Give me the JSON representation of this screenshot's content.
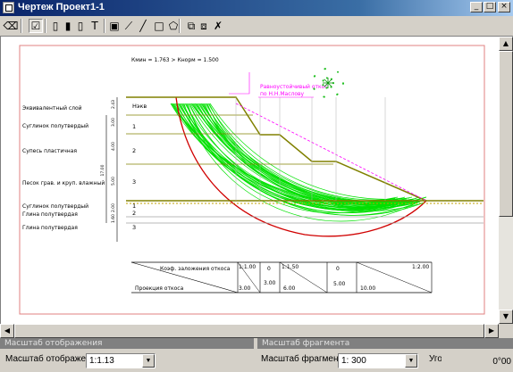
{
  "window": {
    "title": "Чертеж Проект1-1",
    "min": "_",
    "max": "□",
    "close": "×"
  },
  "toolbar": {
    "buttons": [
      {
        "name": "eraser-icon",
        "glyph": "⌫"
      },
      {
        "name": "check-icon",
        "glyph": "☑"
      },
      {
        "name": "frame-icon",
        "glyph": "▯"
      },
      {
        "name": "page-icon",
        "glyph": "▮"
      },
      {
        "name": "page-alt-icon",
        "glyph": "▯"
      },
      {
        "name": "text-icon",
        "glyph": "T"
      },
      {
        "name": "image-icon",
        "glyph": "▣"
      },
      {
        "name": "dimension-icon",
        "glyph": "⟋"
      },
      {
        "name": "line-icon",
        "glyph": "╱"
      },
      {
        "name": "rectangle-icon",
        "glyph": "□"
      },
      {
        "name": "polygon-icon",
        "glyph": "⬠"
      },
      {
        "name": "group-icon",
        "glyph": "⧉"
      },
      {
        "name": "ungroup-icon",
        "glyph": "⧈"
      },
      {
        "name": "delete-icon",
        "glyph": "✗"
      }
    ]
  },
  "drawing": {
    "formula": "Кмин = 1.763 > Кнорм = 1.500",
    "callout_line1": "Равноустойчивый откос",
    "callout_line2": "по Н.Н.Маслову",
    "layer_names": [
      "Эквивалентный слой",
      "Суглинок полутвердый",
      "Супесь пластичная",
      "Песок грав. и круп. влажный",
      "Суглинок полутвердый",
      "Глина полутвердая",
      "Глина полутвердая"
    ],
    "layer_numbers": [
      "Нэкв",
      "1",
      "2",
      "3",
      "1",
      "2",
      "3"
    ],
    "dims": [
      "2.43",
      "3.00",
      "4.00",
      "5.00",
      "2.00",
      "1.60",
      "17.00"
    ],
    "table": {
      "row1_label": "Коэф. заложения откоса",
      "row2_label": "Проекция откоса",
      "coefs": [
        "1:1.00",
        "0",
        "1:1.50",
        "0",
        "1:2.00"
      ],
      "projections": [
        "3.00",
        "3.00",
        "6.00",
        "5.00",
        "10.00"
      ]
    }
  },
  "bottom": {
    "display_scale_header": "Масштаб отображения",
    "display_scale_label": "Масштаб отображения:",
    "display_scale_value": "1:1.13",
    "fragment_scale_header": "Масштаб фрагмента",
    "fragment_scale_label": "Масштаб фрагмента:",
    "fragment_scale_value": "1: 300",
    "rotation_label": "Угол поворота:",
    "rotation_value": "0°00"
  },
  "colors": {
    "slope": "#808000",
    "arc": "#00e000",
    "critical": "#d00000",
    "frame": "#e08080",
    "callout": "#ff00ff"
  }
}
